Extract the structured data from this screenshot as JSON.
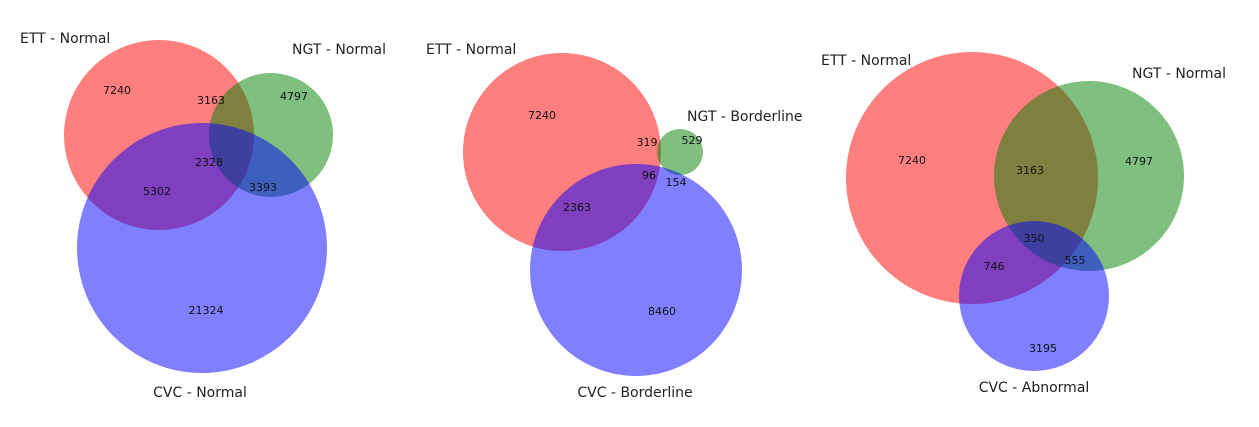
{
  "colors": {
    "set_a": "#ff0000",
    "set_b": "#008000",
    "set_c": "#0000ff",
    "fill_opacity": 0.5
  },
  "venn_1": {
    "sets": {
      "a": "ETT - Normal",
      "b": "NGT - Normal",
      "c": "CVC - Normal"
    },
    "regions": {
      "a_only": "7240",
      "ab_only": "3163",
      "b_only": "4797",
      "abc": "2328",
      "ac_only": "5302",
      "bc_only": "3393",
      "c_only": "21324"
    }
  },
  "venn_2": {
    "sets": {
      "a": "ETT - Normal",
      "b": "NGT - Borderline",
      "c": "CVC - Borderline"
    },
    "regions": {
      "a_only": "7240",
      "ab_only": "319",
      "b_only": "529",
      "abc": "96",
      "bc_only": "154",
      "ac_only": "2363",
      "c_only": "8460"
    }
  },
  "venn_3": {
    "sets": {
      "a": "ETT - Normal",
      "b": "NGT - Normal",
      "c": "CVC - Abnormal"
    },
    "regions": {
      "a_only": "7240",
      "ab_only": "3163",
      "b_only": "4797",
      "abc": "350",
      "ac_only": "746",
      "bc_only": "555",
      "c_only": "3195"
    }
  }
}
